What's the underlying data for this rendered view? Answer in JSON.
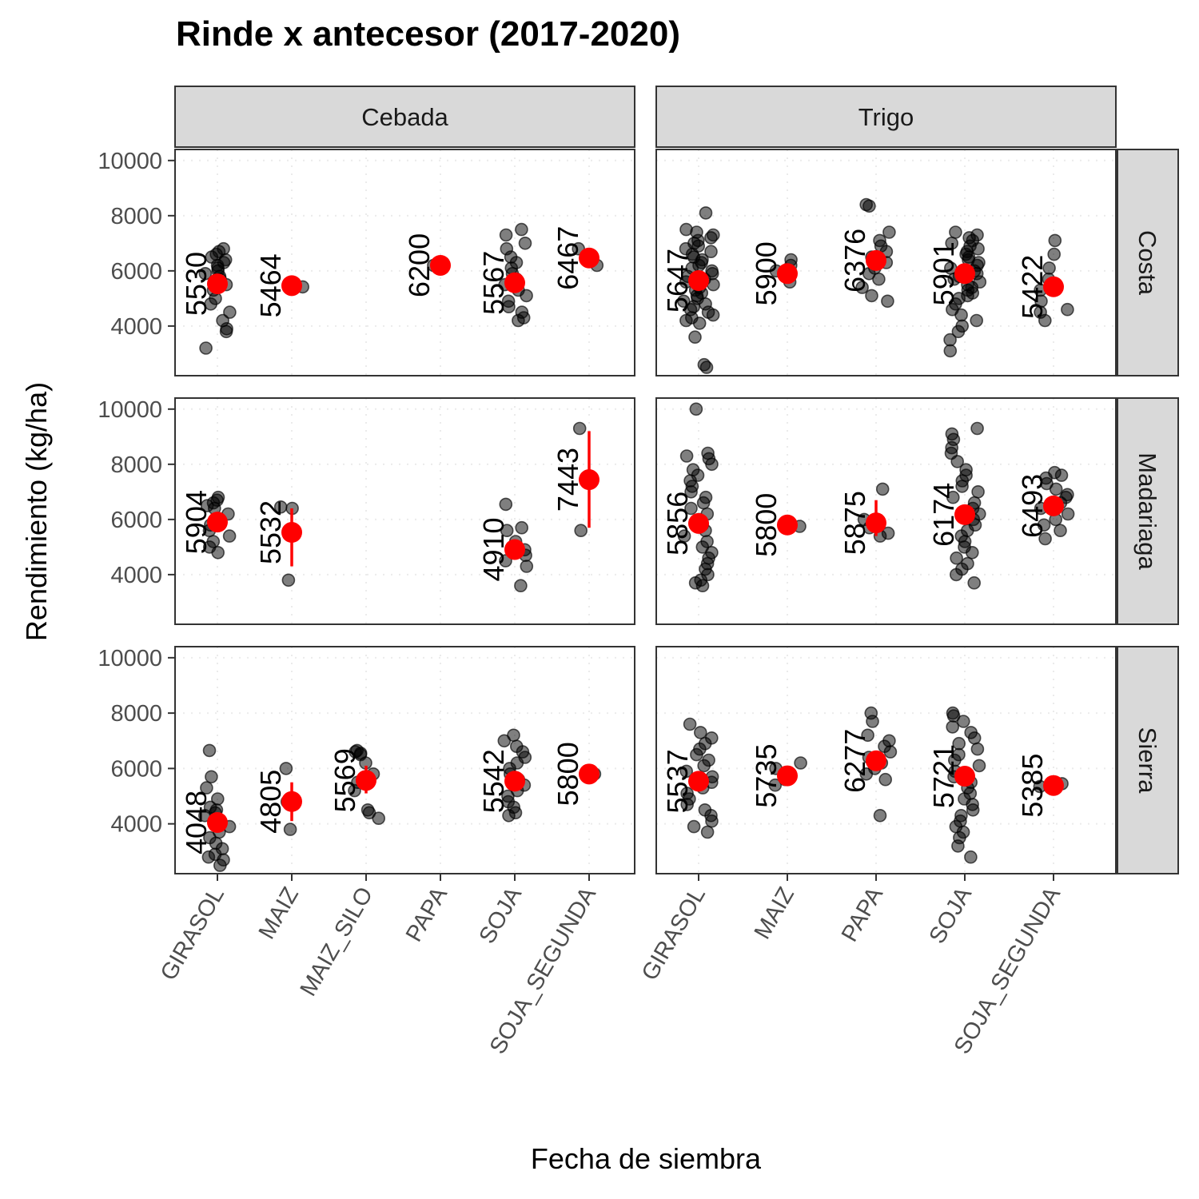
{
  "chart_data": {
    "type": "scatter",
    "title": "Rinde x antecesor (2017-2020)",
    "xlabel": "Fecha de siembra",
    "ylabel": "Rendimiento (kg/ha)",
    "ylim": [
      2200,
      10400
    ],
    "yticks": [
      4000,
      6000,
      8000,
      10000
    ],
    "column_facets": [
      "Cebada",
      "Trigo"
    ],
    "row_facets": [
      "Costa",
      "Madariaga",
      "Sierra"
    ],
    "x_categories": {
      "Cebada": [
        "GIRASOL",
        "MAIZ",
        "MAIZ_SILO",
        "PAPA",
        "SOJA",
        "SOJA_SEGUNDA"
      ],
      "Trigo": [
        "GIRASOL",
        "MAIZ",
        "PAPA",
        "SOJA",
        "SOJA_SEGUNDA"
      ]
    },
    "grid": "dotted",
    "colors": {
      "points": "#000000",
      "mean": "#ff0000",
      "strip_fill": "#d9d9d9",
      "panel_border": "#333333",
      "grid": "#ebebeb"
    },
    "panels": [
      {
        "col": "Cebada",
        "row": "Costa",
        "groups": [
          {
            "category": "GIRASOL",
            "mean": 5530,
            "label": "5530",
            "ci": [
              5300,
              5760
            ],
            "points": [
              6800,
              6700,
              6600,
              6500,
              6400,
              6300,
              6200,
              6100,
              6000,
              5900,
              5800,
              5700,
              5600,
              5500,
              5300,
              5000,
              4800,
              4500,
              4200,
              3900,
              3800,
              3200
            ]
          },
          {
            "category": "MAIZ",
            "mean": 5464,
            "label": "5464",
            "ci": [
              5420,
              5510
            ],
            "points": [
              5500,
              5420
            ]
          },
          {
            "category": "PAPA",
            "mean": 6200,
            "label": "6200",
            "ci": [
              6180,
              6220
            ],
            "points": [
              6200
            ]
          },
          {
            "category": "SOJA",
            "mean": 5567,
            "label": "5567",
            "ci": [
              5350,
              5800
            ],
            "points": [
              7500,
              7300,
              7000,
              6800,
              6500,
              6300,
              6100,
              5900,
              5700,
              5500,
              5300,
              5100,
              4900,
              4700,
              4500,
              4300,
              4200
            ]
          },
          {
            "category": "SOJA_SEGUNDA",
            "mean": 6467,
            "label": "6467",
            "ci": [
              6300,
              6650
            ],
            "points": [
              6800,
              6500,
              6200
            ]
          }
        ]
      },
      {
        "col": "Trigo",
        "row": "Costa",
        "groups": [
          {
            "category": "GIRASOL",
            "mean": 5647,
            "label": "5647",
            "ci": [
              5550,
              5750
            ],
            "points": [
              8100,
              7500,
              7400,
              7300,
              7200,
              7100,
              7000,
              6900,
              6800,
              6700,
              6600,
              6500,
              6400,
              6300,
              6200,
              6100,
              6000,
              5900,
              5800,
              5700,
              5600,
              5500,
              5400,
              5300,
              5200,
              5100,
              5000,
              4900,
              4800,
              4700,
              4600,
              4500,
              4400,
              4300,
              4200,
              4100,
              3600,
              2600,
              2500
            ]
          },
          {
            "category": "MAIZ",
            "mean": 5900,
            "label": "5900",
            "ci": [
              5800,
              6000
            ],
            "points": [
              6400,
              6200,
              6000,
              5800,
              5600
            ]
          },
          {
            "category": "PAPA",
            "mean": 6376,
            "label": "6376",
            "ci": [
              6150,
              6600
            ],
            "points": [
              8400,
              8350,
              7400,
              7100,
              6900,
              6700,
              6500,
              6300,
              6100,
              5900,
              5700,
              5400,
              5100,
              4900
            ]
          },
          {
            "category": "SOJA",
            "mean": 5901,
            "label": "5901",
            "ci": [
              5750,
              6050
            ],
            "points": [
              7400,
              7300,
              7200,
              7100,
              7000,
              6900,
              6800,
              6700,
              6600,
              6500,
              6400,
              6300,
              6200,
              6100,
              6000,
              5900,
              5800,
              5700,
              5600,
              5500,
              5400,
              5300,
              5200,
              5100,
              5000,
              4800,
              4600,
              4400,
              4200,
              4000,
              3800,
              3500,
              3100
            ]
          },
          {
            "category": "SOJA_SEGUNDA",
            "mean": 5422,
            "label": "5422",
            "ci": [
              5100,
              5750
            ],
            "points": [
              7100,
              6600,
              6100,
              5700,
              5300,
              4900,
              4600,
              4500,
              4200
            ]
          }
        ]
      },
      {
        "col": "Cebada",
        "row": "Madariaga",
        "groups": [
          {
            "category": "GIRASOL",
            "mean": 5904,
            "label": "5904",
            "ci": [
              5700,
              6100
            ],
            "points": [
              6800,
              6700,
              6600,
              6500,
              6400,
              6200,
              6000,
              5800,
              5600,
              5400,
              5200,
              5000,
              4800
            ]
          },
          {
            "category": "MAIZ",
            "mean": 5532,
            "label": "5532",
            "ci": [
              4300,
              6400
            ],
            "points": [
              6450,
              6400,
              3800
            ]
          },
          {
            "category": "SOJA",
            "mean": 4910,
            "label": "4910",
            "ci": [
              4700,
              5150
            ],
            "points": [
              6550,
              5700,
              5600,
              5200,
              4900,
              4700,
              4500,
              4300,
              3600
            ]
          },
          {
            "category": "SOJA_SEGUNDA",
            "mean": 7443,
            "label": "7443",
            "ci": [
              5700,
              9200
            ],
            "points": [
              9300,
              5600
            ]
          }
        ]
      },
      {
        "col": "Trigo",
        "row": "Madariaga",
        "groups": [
          {
            "category": "GIRASOL",
            "mean": 5856,
            "label": "5856",
            "ci": [
              5750,
              5960
            ],
            "points": [
              10000,
              8400,
              8300,
              8200,
              8000,
              7800,
              7600,
              7400,
              7200,
              7000,
              6800,
              6600,
              6400,
              6200,
              6000,
              5800,
              5600,
              5400,
              5200,
              5000,
              4800,
              4600,
              4400,
              4200,
              4000,
              3800,
              3700,
              3600
            ]
          },
          {
            "category": "MAIZ",
            "mean": 5800,
            "label": "5800",
            "ci": [
              5780,
              5820
            ],
            "points": [
              5850,
              5750
            ]
          },
          {
            "category": "PAPA",
            "mean": 5875,
            "label": "5875",
            "ci": [
              5400,
              6700
            ],
            "points": [
              7100,
              6000,
              5700,
              5500,
              5400
            ]
          },
          {
            "category": "SOJA",
            "mean": 6174,
            "label": "6174",
            "ci": [
              6050,
              6300
            ],
            "points": [
              9300,
              9100,
              8900,
              8600,
              8400,
              8100,
              7800,
              7600,
              7400,
              7200,
              7000,
              6800,
              6600,
              6400,
              6200,
              6000,
              5800,
              5600,
              5400,
              5200,
              5000,
              4800,
              4600,
              4400,
              4200,
              4000,
              3700
            ]
          },
          {
            "category": "SOJA_SEGUNDA",
            "mean": 6493,
            "label": "6493",
            "ci": [
              6350,
              6650
            ],
            "points": [
              7700,
              7600,
              7500,
              7300,
              7100,
              6900,
              6800,
              6600,
              6400,
              6200,
              6000,
              5800,
              5600,
              5300
            ]
          }
        ]
      },
      {
        "col": "Cebada",
        "row": "Sierra",
        "groups": [
          {
            "category": "GIRASOL",
            "mean": 4048,
            "label": "4048",
            "ci": [
              3800,
              4300
            ],
            "points": [
              6650,
              5700,
              5300,
              4900,
              4600,
              4500,
              4400,
              4300,
              4100,
              3900,
              3700,
              3500,
              3300,
              3100,
              2900,
              2800,
              2700,
              2500
            ]
          },
          {
            "category": "MAIZ",
            "mean": 4805,
            "label": "4805",
            "ci": [
              4100,
              5500
            ],
            "points": [
              6000,
              4850,
              4800,
              3800
            ]
          },
          {
            "category": "MAIZ_SILO",
            "mean": 5569,
            "label": "5569",
            "ci": [
              5100,
              6100
            ],
            "points": [
              6650,
              6600,
              6550,
              6500,
              6200,
              5800,
              5500,
              5200,
              4500,
              4400,
              4200
            ]
          },
          {
            "category": "SOJA",
            "mean": 5542,
            "label": "5542",
            "ci": [
              5350,
              5750
            ],
            "points": [
              7200,
              7000,
              6800,
              6600,
              6400,
              6200,
              6000,
              5800,
              5600,
              5400,
              5200,
              5000,
              4800,
              4600,
              4400,
              4300
            ]
          },
          {
            "category": "SOJA_SEGUNDA",
            "mean": 5800,
            "label": "5800",
            "ci": [
              5780,
              5820
            ],
            "points": [
              5800
            ]
          }
        ]
      },
      {
        "col": "Trigo",
        "row": "Sierra",
        "groups": [
          {
            "category": "GIRASOL",
            "mean": 5537,
            "label": "5537",
            "ci": [
              5400,
              5700
            ],
            "points": [
              7600,
              7300,
              7100,
              6900,
              6700,
              6500,
              6300,
              6100,
              5900,
              5700,
              5500,
              5300,
              5100,
              4900,
              4700,
              4500,
              4300,
              4100,
              3900,
              3700
            ]
          },
          {
            "category": "MAIZ",
            "mean": 5735,
            "label": "5735",
            "ci": [
              5600,
              5900
            ],
            "points": [
              6200,
              6000,
              5800,
              5600,
              5400
            ]
          },
          {
            "category": "PAPA",
            "mean": 6277,
            "label": "6277",
            "ci": [
              6050,
              6500
            ],
            "points": [
              8000,
              7700,
              7200,
              7000,
              6800,
              6600,
              6400,
              6200,
              6000,
              5800,
              5600,
              4300
            ]
          },
          {
            "category": "SOJA",
            "mean": 5721,
            "label": "5721",
            "ci": [
              5600,
              5850
            ],
            "points": [
              8000,
              7900,
              7700,
              7500,
              7300,
              7100,
              6900,
              6700,
              6500,
              6300,
              6100,
              5900,
              5700,
              5500,
              5300,
              5100,
              4900,
              4700,
              4500,
              4300,
              4100,
              3900,
              3700,
              3500,
              3200,
              2800
            ]
          },
          {
            "category": "SOJA_SEGUNDA",
            "mean": 5385,
            "label": "5385",
            "ci": [
              5300,
              5470
            ],
            "points": [
              5450,
              5400,
              5350,
              5300
            ]
          }
        ]
      }
    ]
  }
}
